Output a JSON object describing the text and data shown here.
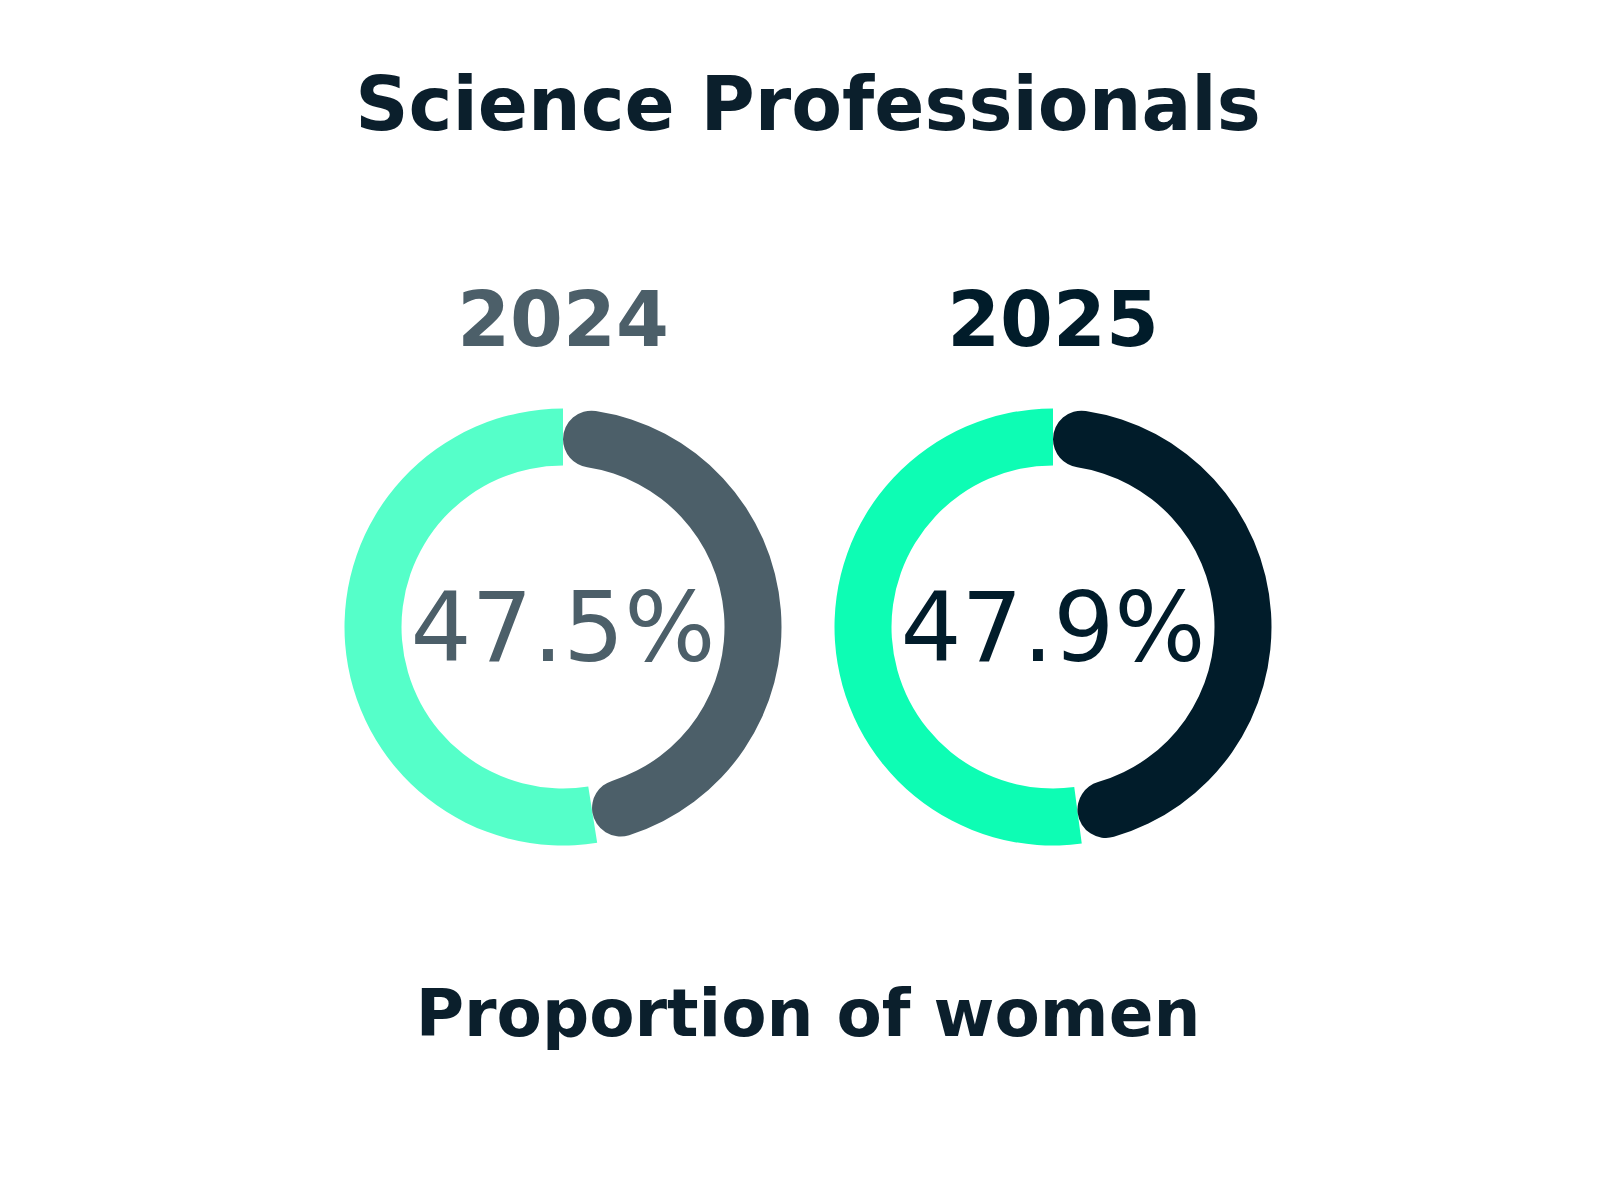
{
  "chart_data": [
    {
      "type": "donut",
      "title": "Science Professionals",
      "subtitle": "2024",
      "xlabel": "Proportion of women",
      "categories": [
        null,
        null
      ],
      "values": [
        47.5,
        52.5
      ],
      "colors": [
        "#4c5f69",
        "#55ffc9"
      ],
      "value_labels": [
        "47.5%",
        null
      ]
    },
    {
      "type": "donut",
      "subtitle": "2025",
      "categories": [
        null,
        null
      ],
      "values": [
        47.9,
        52.1
      ],
      "colors": [
        "#011c2a",
        "#0dfdb4"
      ],
      "value_labels": [
        "47.9%",
        null
      ]
    }
  ]
}
